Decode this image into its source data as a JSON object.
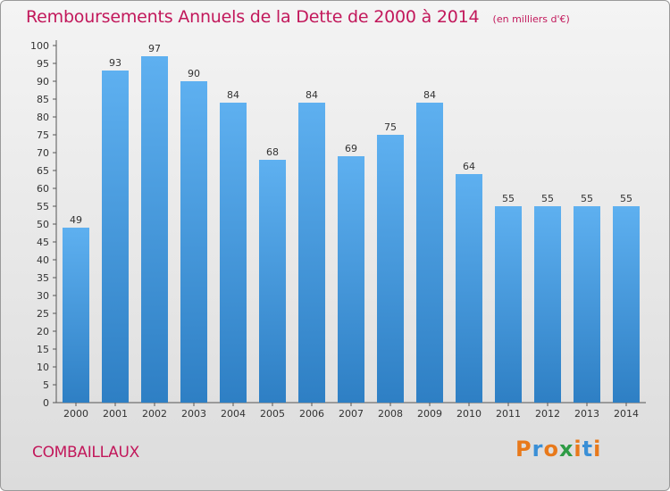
{
  "header": {
    "title": "Remboursements Annuels de la Dette de 2000 à 2014",
    "unit": "(en milliers d'€)"
  },
  "footer": {
    "commune": "COMBAILLAUX",
    "logo_text": "Proxiti"
  },
  "colors": {
    "bar": "#3a8fd6",
    "bar_light": "#5aaef0",
    "title": "#c2185b",
    "logo": [
      "#e8791b",
      "#3a8fd6",
      "#e8791b",
      "#2e9b45",
      "#e8791b",
      "#3a8fd6",
      "#e8791b"
    ]
  },
  "chart_data": {
    "type": "bar",
    "title": "Remboursements Annuels de la Dette de 2000 à 2014",
    "subtitle": "(en milliers d'€)",
    "xlabel": "",
    "ylabel": "",
    "categories": [
      "2000",
      "2001",
      "2002",
      "2003",
      "2004",
      "2005",
      "2006",
      "2007",
      "2008",
      "2009",
      "2010",
      "2011",
      "2012",
      "2013",
      "2014"
    ],
    "values": [
      49,
      93,
      97,
      90,
      84,
      68,
      84,
      69,
      75,
      84,
      64,
      55,
      55,
      55,
      55
    ],
    "ylim": [
      0,
      100
    ],
    "ytick_step": 5,
    "grid": false,
    "data_labels": true
  }
}
